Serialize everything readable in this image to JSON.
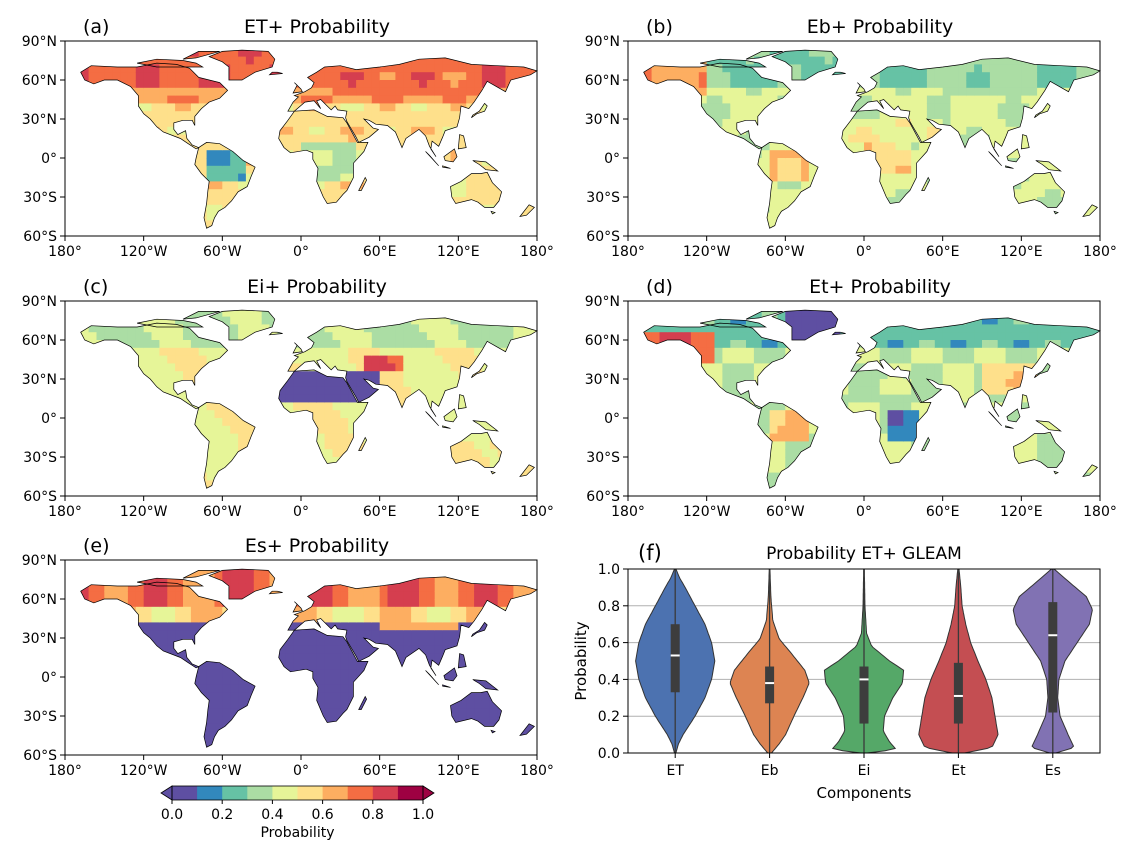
{
  "colormap": [
    "#5e4fa2",
    "#3288bd",
    "#66c2a5",
    "#abdda4",
    "#e6f598",
    "#fee08b",
    "#fdae61",
    "#f46d43",
    "#d53e4f",
    "#9e0142"
  ],
  "map_panels": [
    {
      "letter": "(a)",
      "title": "ET+ Probability",
      "pattern": "et"
    },
    {
      "letter": "(b)",
      "title": "Eb+ Probability",
      "pattern": "eb"
    },
    {
      "letter": "(c)",
      "title": "Ei+ Probability",
      "pattern": "ei"
    },
    {
      "letter": "(d)",
      "title": "Et+ Probability",
      "pattern": "etr"
    },
    {
      "letter": "(e)",
      "title": "Es+ Probability",
      "pattern": "es"
    }
  ],
  "map_lat_ticks": [
    "90°N",
    "60°N",
    "30°N",
    "0°",
    "30°S",
    "60°S"
  ],
  "map_lon_ticks": [
    "180°",
    "120°W",
    "60°W",
    "0°",
    "60°E",
    "120°E",
    "180°"
  ],
  "colorbar": {
    "label": "Probability",
    "ticks": [
      "0.0",
      "0.2",
      "0.4",
      "0.6",
      "0.8",
      "1.0"
    ],
    "extend": "both"
  },
  "chart_data": {
    "type": "violin",
    "letter": "(f)",
    "title": "Probability ET+ GLEAM",
    "xlabel": "Components",
    "ylabel": "Probability",
    "ylim": [
      0,
      1
    ],
    "yticks": [
      "0.0",
      "0.2",
      "0.4",
      "0.6",
      "0.8",
      "1.0"
    ],
    "grid": "horizontal",
    "categories": [
      "ET",
      "Eb",
      "Ei",
      "Et",
      "Es"
    ],
    "colors": [
      "#4c72b0",
      "#dd8452",
      "#55a868",
      "#c44e52",
      "#8172b3"
    ],
    "series": [
      {
        "min": 0.0,
        "q1": 0.33,
        "median": 0.53,
        "q3": 0.7,
        "max": 1.0,
        "density": [
          [
            0.0,
            0.01
          ],
          [
            0.05,
            0.05
          ],
          [
            0.1,
            0.12
          ],
          [
            0.2,
            0.3
          ],
          [
            0.3,
            0.45
          ],
          [
            0.4,
            0.55
          ],
          [
            0.5,
            0.6
          ],
          [
            0.6,
            0.55
          ],
          [
            0.7,
            0.45
          ],
          [
            0.8,
            0.3
          ],
          [
            0.9,
            0.15
          ],
          [
            0.95,
            0.07
          ],
          [
            1.0,
            0.01
          ]
        ]
      },
      {
        "min": 0.0,
        "q1": 0.27,
        "median": 0.38,
        "q3": 0.47,
        "max": 1.0,
        "density": [
          [
            0.0,
            0.03
          ],
          [
            0.05,
            0.15
          ],
          [
            0.1,
            0.25
          ],
          [
            0.2,
            0.38
          ],
          [
            0.3,
            0.52
          ],
          [
            0.38,
            0.62
          ],
          [
            0.45,
            0.55
          ],
          [
            0.55,
            0.32
          ],
          [
            0.62,
            0.15
          ],
          [
            0.72,
            0.05
          ],
          [
            0.85,
            0.02
          ],
          [
            1.0,
            0.005
          ]
        ]
      },
      {
        "min": 0.0,
        "q1": 0.16,
        "median": 0.4,
        "q3": 0.47,
        "max": 1.0,
        "density": [
          [
            0.0,
            0.05
          ],
          [
            0.02,
            0.5
          ],
          [
            0.06,
            0.4
          ],
          [
            0.12,
            0.3
          ],
          [
            0.2,
            0.32
          ],
          [
            0.3,
            0.45
          ],
          [
            0.38,
            0.6
          ],
          [
            0.45,
            0.62
          ],
          [
            0.5,
            0.4
          ],
          [
            0.58,
            0.12
          ],
          [
            0.65,
            0.04
          ],
          [
            0.8,
            0.015
          ],
          [
            1.0,
            0.005
          ]
        ]
      },
      {
        "min": 0.0,
        "q1": 0.16,
        "median": 0.31,
        "q3": 0.49,
        "max": 1.0,
        "density": [
          [
            0.0,
            0.1
          ],
          [
            0.03,
            0.55
          ],
          [
            0.1,
            0.65
          ],
          [
            0.2,
            0.6
          ],
          [
            0.3,
            0.55
          ],
          [
            0.4,
            0.45
          ],
          [
            0.5,
            0.32
          ],
          [
            0.6,
            0.2
          ],
          [
            0.7,
            0.12
          ],
          [
            0.8,
            0.06
          ],
          [
            0.9,
            0.04
          ],
          [
            1.0,
            0.01
          ]
        ]
      },
      {
        "min": 0.0,
        "q1": 0.22,
        "median": 0.64,
        "q3": 0.82,
        "max": 1.0,
        "density": [
          [
            0.0,
            0.05
          ],
          [
            0.03,
            0.35
          ],
          [
            0.1,
            0.25
          ],
          [
            0.2,
            0.12
          ],
          [
            0.3,
            0.08
          ],
          [
            0.4,
            0.1
          ],
          [
            0.5,
            0.2
          ],
          [
            0.6,
            0.4
          ],
          [
            0.7,
            0.6
          ],
          [
            0.78,
            0.65
          ],
          [
            0.85,
            0.55
          ],
          [
            0.92,
            0.3
          ],
          [
            1.0,
            0.02
          ]
        ]
      }
    ]
  }
}
